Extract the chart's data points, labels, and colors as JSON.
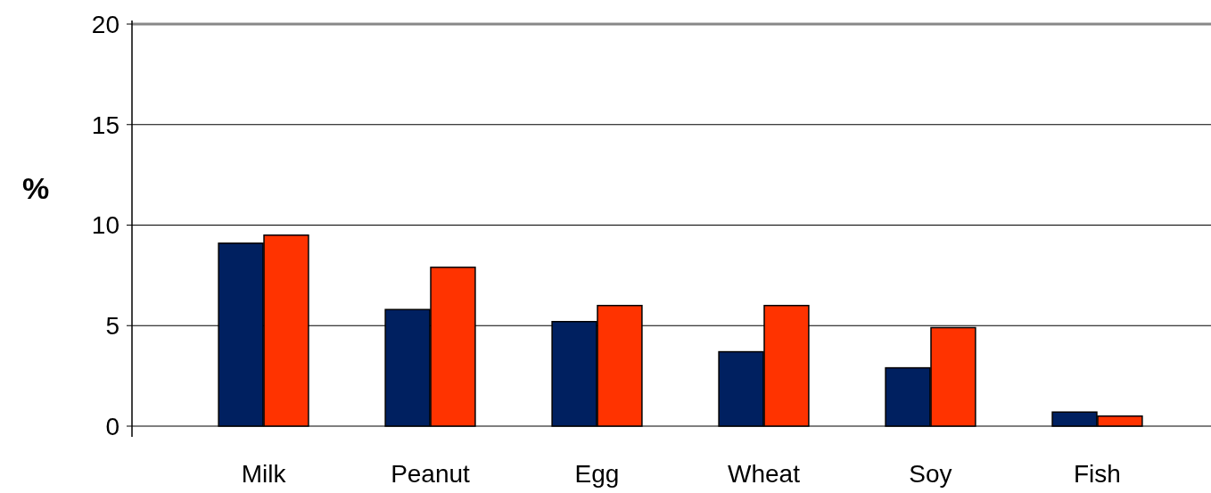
{
  "chart_data": {
    "type": "bar",
    "ylabel": "%",
    "categories": [
      "Milk",
      "Peanut",
      "Egg",
      "Wheat",
      "Soy",
      "Fish"
    ],
    "series": [
      {
        "color": "#002060",
        "values": [
          9.1,
          5.8,
          5.2,
          3.7,
          2.9,
          0.7
        ]
      },
      {
        "color": "#ff3300",
        "values": [
          9.5,
          7.9,
          6.0,
          6.0,
          4.9,
          0.5
        ]
      }
    ],
    "ylim": [
      0,
      20
    ],
    "yticks": [
      0,
      5,
      10,
      15,
      20
    ],
    "grid": "y"
  }
}
